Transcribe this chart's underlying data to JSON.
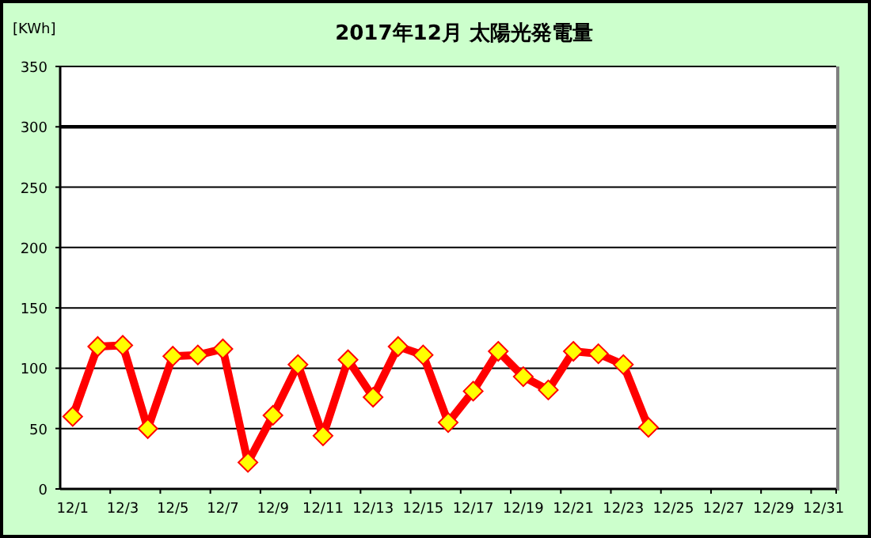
{
  "chart_data": {
    "type": "line",
    "title": "2017年12月 太陽光発電量",
    "ylabel": "[KWh]",
    "categories": [
      "12/1",
      null,
      "12/3",
      null,
      "12/5",
      null,
      "12/7",
      null,
      "12/9",
      null,
      "12/11",
      null,
      "12/13",
      null,
      "12/15",
      null,
      "12/17",
      null,
      "12/19",
      null,
      "12/21",
      null,
      "12/23",
      null,
      "12/25",
      null,
      "12/27",
      null,
      "12/29",
      null,
      "12/31"
    ],
    "series": [
      {
        "color": "#ff0000",
        "values": [
          60,
          118,
          119,
          50,
          110,
          111,
          116,
          22,
          61,
          103,
          44,
          107,
          76,
          118,
          111,
          55,
          81,
          114,
          93,
          82,
          114,
          112,
          103,
          51,
          null,
          null,
          null,
          null,
          null,
          null,
          null
        ]
      }
    ],
    "ylim": [
      0,
      350
    ],
    "yticks": [
      0,
      50,
      100,
      150,
      200,
      250,
      300,
      350
    ],
    "grid": "y",
    "ref_lines": [
      {
        "axis": "y",
        "value": 300,
        "color": "#000000"
      }
    ],
    "marker": "diamond",
    "line_style": "solid"
  }
}
